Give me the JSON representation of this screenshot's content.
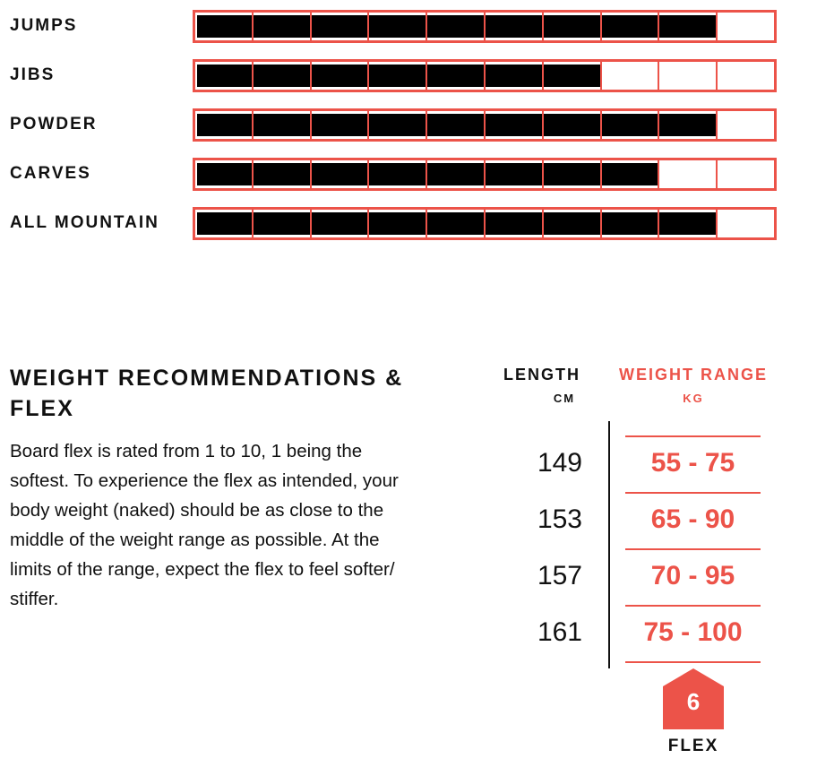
{
  "ratings": {
    "scale_max": 10,
    "accent_color": "#ec5349",
    "items": [
      {
        "label": "JUMPS",
        "value": 9
      },
      {
        "label": "JIBS",
        "value": 7
      },
      {
        "label": "POWDER",
        "value": 9
      },
      {
        "label": "CARVES",
        "value": 8
      },
      {
        "label": "ALL MOUNTAIN",
        "value": 9
      }
    ]
  },
  "weight": {
    "title": "WEIGHT RECOMMENDATIONS & FLEX",
    "description": "Board flex is rated from 1 to 10, 1 being the softest. To experience the flex as intended, your body weight (naked) should be as close to the middle of the weight range as possible. At the limits of the range, expect the flex to feel softer/ stiffer.",
    "length_header": "LENGTH",
    "length_unit": "CM",
    "weight_header": "WEIGHT RANGE",
    "weight_unit": "KG",
    "rows": [
      {
        "length": "149",
        "range": "55 - 75"
      },
      {
        "length": "153",
        "range": "65 - 90"
      },
      {
        "length": "157",
        "range": "70 - 95"
      },
      {
        "length": "161",
        "range": "75 - 100"
      }
    ],
    "flex_value": "6",
    "flex_label": "FLEX"
  }
}
